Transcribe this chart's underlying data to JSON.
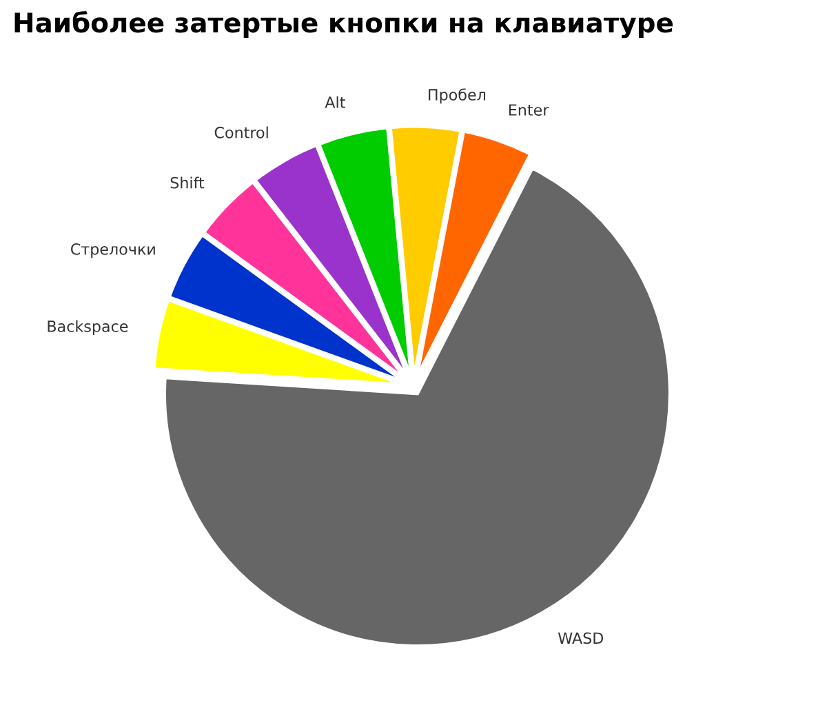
{
  "chart_data": {
    "type": "pie",
    "title": "Наиболее затертые кнопки на клавиатуре",
    "categories": [
      "Enter",
      "Пробел",
      "Alt",
      "Control",
      "Shift",
      "Стрелочки",
      "Backspace",
      "WASD"
    ],
    "values": [
      4.5,
      4.5,
      4.5,
      4.5,
      4.5,
      4.5,
      4.5,
      68.5
    ],
    "colors": [
      "#ff6600",
      "#ffcc00",
      "#00cc00",
      "#9933cc",
      "#ff3399",
      "#0033cc",
      "#ffff00",
      "#666666"
    ]
  }
}
